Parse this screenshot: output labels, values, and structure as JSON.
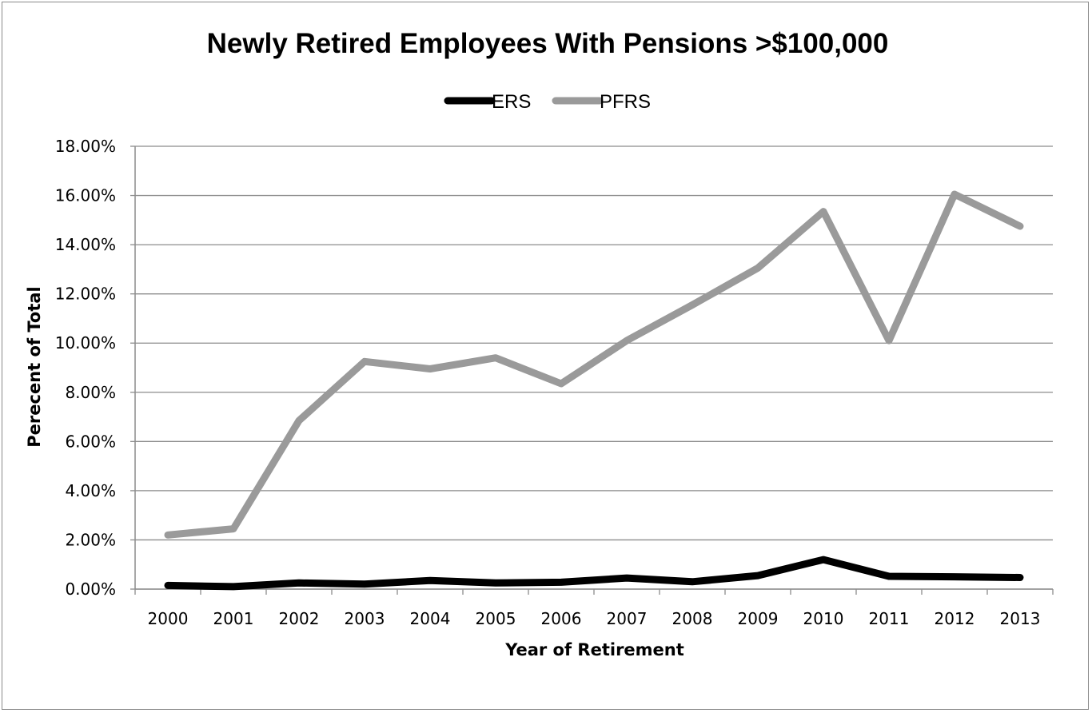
{
  "chart_data": {
    "type": "line",
    "title": "Newly Retired Employees With Pensions >$100,000",
    "xlabel": "Year of Retirement",
    "ylabel": "Perecent of Total",
    "categories": [
      "2000",
      "2001",
      "2002",
      "2003",
      "2004",
      "2005",
      "2006",
      "2007",
      "2008",
      "2009",
      "2010",
      "2011",
      "2012",
      "2013"
    ],
    "ylim": [
      0,
      18
    ],
    "yticks": [
      0,
      2,
      4,
      6,
      8,
      10,
      12,
      14,
      16,
      18
    ],
    "ytick_labels": [
      "0.00%",
      "2.00%",
      "4.00%",
      "6.00%",
      "8.00%",
      "10.00%",
      "12.00%",
      "14.00%",
      "16.00%",
      "18.00%"
    ],
    "grid": true,
    "legend_position": "top-center",
    "series": [
      {
        "name": "ERS",
        "color": "#000000",
        "values": [
          0.15,
          0.1,
          0.25,
          0.2,
          0.35,
          0.25,
          0.28,
          0.45,
          0.3,
          0.55,
          1.2,
          0.52,
          0.5,
          0.47
        ]
      },
      {
        "name": "PFRS",
        "color": "#9a9a9a",
        "values": [
          2.2,
          2.45,
          6.85,
          9.25,
          8.95,
          9.4,
          8.35,
          10.1,
          11.55,
          13.05,
          15.35,
          10.1,
          16.05,
          14.75
        ]
      }
    ]
  }
}
